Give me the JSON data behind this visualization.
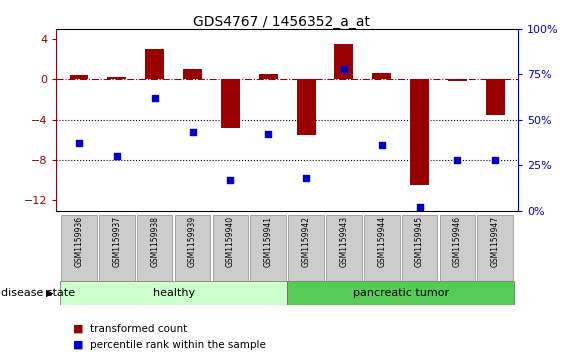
{
  "title": "GDS4767 / 1456352_a_at",
  "samples": [
    "GSM1159936",
    "GSM1159937",
    "GSM1159938",
    "GSM1159939",
    "GSM1159940",
    "GSM1159941",
    "GSM1159942",
    "GSM1159943",
    "GSM1159944",
    "GSM1159945",
    "GSM1159946",
    "GSM1159947"
  ],
  "transformed_count": [
    0.4,
    0.2,
    3.0,
    1.0,
    -4.8,
    0.5,
    -5.5,
    3.5,
    0.6,
    -10.5,
    -0.2,
    -3.5
  ],
  "percentile_rank": [
    37,
    30,
    62,
    43,
    17,
    42,
    18,
    78,
    36,
    2,
    28,
    28
  ],
  "bar_color": "#990000",
  "dot_color": "#0000cc",
  "ylim_left": [
    -13,
    5
  ],
  "ylim_right": [
    0,
    100
  ],
  "yticks_left": [
    4,
    0,
    -4,
    -8,
    -12
  ],
  "yticks_right": [
    100,
    75,
    50,
    25,
    0
  ],
  "hline_y": 0,
  "dotted_lines": [
    -4,
    -8
  ],
  "healthy_color": "#ccffcc",
  "tumor_color": "#55cc55",
  "healthy_label": "healthy",
  "tumor_label": "pancreatic tumor",
  "disease_state_label": "disease state",
  "legend_bar_label": "transformed count",
  "legend_dot_label": "percentile rank within the sample",
  "bar_width": 0.5,
  "n_healthy": 6,
  "n_tumor": 6
}
